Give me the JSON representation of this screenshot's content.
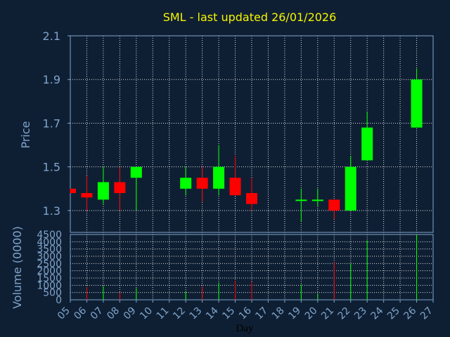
{
  "chart_data": {
    "type": "candlestick",
    "title": "SML - last updated 26/01/2026",
    "xlabel": "Day",
    "price_panel": {
      "ylabel": "Price",
      "ylim": [
        1.2,
        2.1
      ],
      "y_ticks": [
        "2.1",
        "1.9",
        "1.7",
        "1.5",
        "1.3"
      ],
      "y_tick_values": [
        2.1,
        1.9,
        1.7,
        1.5,
        1.3
      ],
      "grid": true
    },
    "volume_panel": {
      "ylabel": "Volume (0000)",
      "ylim": [
        0,
        4500
      ],
      "y_ticks": [
        "4500",
        "4000",
        "3500",
        "3000",
        "2500",
        "2000",
        "1500",
        "1000",
        "500",
        "0"
      ],
      "y_tick_values": [
        4500,
        4000,
        3500,
        3000,
        2500,
        2000,
        1500,
        1000,
        500,
        0
      ],
      "grid": true
    },
    "x_ticks": [
      "05",
      "06",
      "07",
      "08",
      "09",
      "10",
      "11",
      "12",
      "13",
      "14",
      "15",
      "16",
      "17",
      "18",
      "19",
      "20",
      "21",
      "22",
      "23",
      "24",
      "25",
      "26",
      "27"
    ],
    "candles": [
      {
        "day": "05",
        "open": 1.4,
        "close": 1.38,
        "high": 1.4,
        "low": 1.38,
        "volume": 0
      },
      {
        "day": "06",
        "open": 1.38,
        "close": 1.36,
        "high": 1.46,
        "low": 1.3,
        "volume": 900
      },
      {
        "day": "07",
        "open": 1.35,
        "close": 1.43,
        "high": 1.5,
        "low": 1.33,
        "volume": 950
      },
      {
        "day": "08",
        "open": 1.43,
        "close": 1.38,
        "high": 1.5,
        "low": 1.3,
        "volume": 500
      },
      {
        "day": "09",
        "open": 1.45,
        "close": 1.5,
        "high": 1.5,
        "low": 1.3,
        "volume": 800
      },
      {
        "day": "12",
        "open": 1.4,
        "close": 1.45,
        "high": 1.5,
        "low": 1.37,
        "volume": 600
      },
      {
        "day": "13",
        "open": 1.45,
        "close": 1.4,
        "high": 1.5,
        "low": 1.34,
        "volume": 900
      },
      {
        "day": "14",
        "open": 1.4,
        "close": 1.5,
        "high": 1.6,
        "low": 1.37,
        "volume": 1200
      },
      {
        "day": "15",
        "open": 1.45,
        "close": 1.37,
        "high": 1.55,
        "low": 1.37,
        "volume": 1300
      },
      {
        "day": "16",
        "open": 1.38,
        "close": 1.33,
        "high": 1.45,
        "low": 1.3,
        "volume": 1250
      },
      {
        "day": "19",
        "open": 1.35,
        "close": 1.35,
        "high": 1.4,
        "low": 1.25,
        "volume": 1050
      },
      {
        "day": "20",
        "open": 1.35,
        "close": 1.35,
        "high": 1.4,
        "low": 1.32,
        "volume": 400
      },
      {
        "day": "21",
        "open": 1.35,
        "close": 1.3,
        "high": 1.35,
        "low": 1.26,
        "volume": 2600
      },
      {
        "day": "22",
        "open": 1.3,
        "close": 1.5,
        "high": 1.55,
        "low": 1.3,
        "volume": 2500
      },
      {
        "day": "23",
        "open": 1.53,
        "close": 1.68,
        "high": 1.75,
        "low": 1.53,
        "volume": 4100
      },
      {
        "day": "26",
        "open": 1.68,
        "close": 1.9,
        "high": 1.95,
        "low": 1.68,
        "volume": 4500
      }
    ],
    "colors": {
      "background": "#0f1f33",
      "plot_background": "#0f1f33",
      "title": "#f5f500",
      "axis_text": "#7fa4cc",
      "grid": "#ffffff",
      "up": "#00ff00",
      "down": "#ff0000"
    }
  }
}
